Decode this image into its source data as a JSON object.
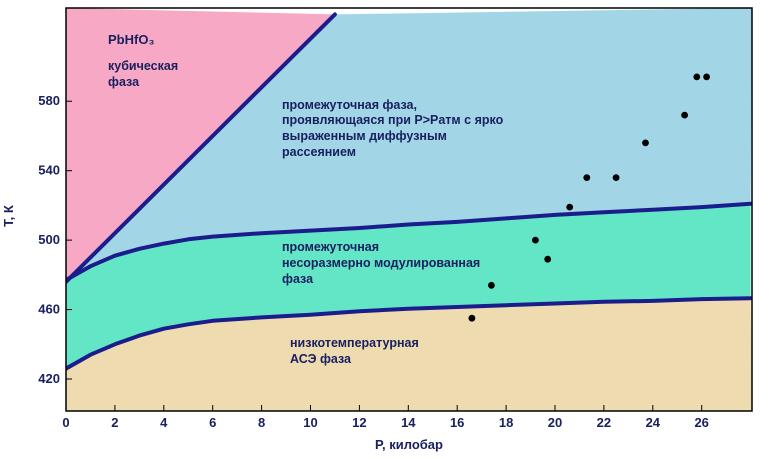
{
  "chart_data": {
    "type": "scatter",
    "title": "",
    "xlabel": "P, килобар",
    "ylabel": "T, К",
    "xlim": [
      0,
      28
    ],
    "ylim": [
      410,
      590
    ],
    "xticks": [
      0,
      2,
      4,
      6,
      8,
      10,
      12,
      14,
      16,
      18,
      20,
      22,
      24,
      26
    ],
    "yticks": [
      420,
      460,
      500,
      540,
      580
    ],
    "grid": false,
    "legend": "none",
    "compound": "PbHfO₃",
    "regions": [
      {
        "id": "cubic",
        "lines": [
          "кубическая",
          "фаза"
        ],
        "color": "#f7a8c4"
      },
      {
        "id": "intermediate-diffuse",
        "lines": [
          "промежуточная фаза,",
          "проявляющаяся при P>Pатм с ярко",
          "выраженным диффузным",
          "рассеянием"
        ],
        "color": "#a2d6e6"
      },
      {
        "id": "incommensurate",
        "lines": [
          "промежуточная",
          "несоразмерно модулированная",
          "фаза"
        ],
        "color": "#63e6c6"
      },
      {
        "id": "low-temp",
        "lines": [
          "низкотемпературная",
          "АСЭ фаза"
        ],
        "color": "#eedcb0"
      }
    ],
    "boundaries": [
      {
        "name": "",
        "x": [
          0,
          11
        ],
        "y": [
          476,
          630
        ],
        "color": "#1c1d8c"
      },
      {
        "name": "",
        "x": [
          0,
          1,
          2,
          3,
          4,
          5,
          6,
          8,
          10,
          12,
          14,
          16,
          18,
          20,
          22,
          24,
          26,
          28
        ],
        "y": [
          477,
          485,
          491,
          495,
          498,
          500.5,
          502,
          504,
          505.5,
          507,
          509,
          510.5,
          512.5,
          514.5,
          516,
          517.5,
          519,
          521
        ],
        "color": "#1c1d8c"
      },
      {
        "name": "",
        "x": [
          0,
          1,
          2,
          3,
          4,
          5,
          6,
          8,
          10,
          12,
          14,
          16,
          18,
          20,
          22,
          24,
          26,
          28
        ],
        "y": [
          426,
          434,
          440,
          445,
          449,
          451.5,
          453.5,
          455.5,
          457,
          459,
          460.5,
          461.5,
          462.5,
          463.5,
          464.5,
          465,
          466,
          466.5
        ],
        "color": "#1c1d8c"
      }
    ],
    "series": [
      {
        "points": [
          {
            "x": 16.6,
            "y": 455
          },
          {
            "x": 17.4,
            "y": 474
          },
          {
            "x": 19.2,
            "y": 500
          },
          {
            "x": 19.7,
            "y": 489
          },
          {
            "x": 20.6,
            "y": 519
          },
          {
            "x": 21.3,
            "y": 536
          },
          {
            "x": 22.5,
            "y": 536
          },
          {
            "x": 23.7,
            "y": 556
          },
          {
            "x": 25.3,
            "y": 572
          },
          {
            "x": 25.8,
            "y": 594
          },
          {
            "x": 26.2,
            "y": 594
          }
        ]
      }
    ]
  }
}
